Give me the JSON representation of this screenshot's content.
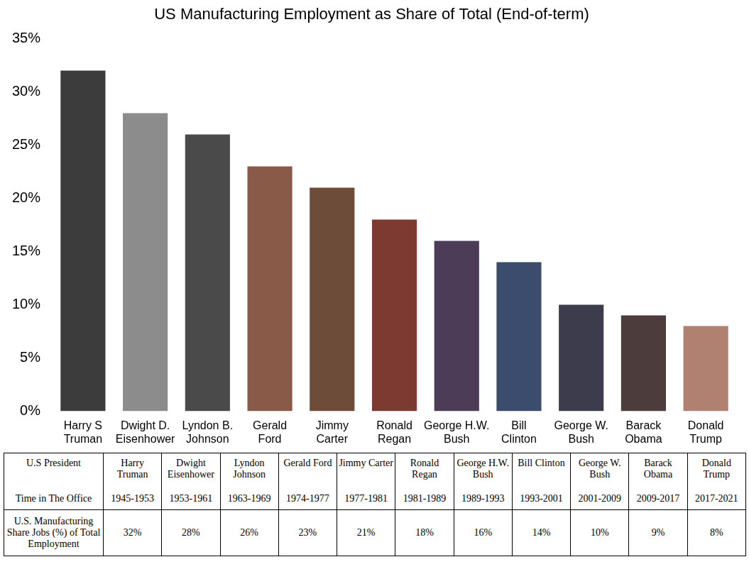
{
  "chart_data": {
    "type": "bar",
    "title": "US Manufacturing Employment as Share of Total (End-of-term)",
    "categories": [
      "Harry S Truman",
      "Dwight D. Eisenhower",
      "Lyndon B. Johnson",
      "Gerald Ford",
      "Jimmy Carter",
      "Ronald Regan",
      "George H.W. Bush",
      "Bill Clinton",
      "George W. Bush",
      "Barack Obama",
      "Donald Trump"
    ],
    "values": [
      32,
      28,
      26,
      23,
      21,
      18,
      16,
      14,
      10,
      9,
      8
    ],
    "colors": [
      "#3c3c3c",
      "#8c8c8c",
      "#4a4a4a",
      "#8a5a48",
      "#6e4c3a",
      "#7c3a30",
      "#4c3c58",
      "#3c4c6c",
      "#3c3c4c",
      "#4c3c3c",
      "#b08070"
    ],
    "ylim": [
      0,
      35
    ],
    "yticks": [
      {
        "value": 0,
        "label": "0%"
      },
      {
        "value": 5,
        "label": "5%"
      },
      {
        "value": 10,
        "label": "10%"
      },
      {
        "value": 15,
        "label": "15%"
      },
      {
        "value": 20,
        "label": "20%"
      },
      {
        "value": 25,
        "label": "25%"
      },
      {
        "value": 30,
        "label": "30%"
      },
      {
        "value": 35,
        "label": "35%"
      }
    ],
    "grid": false,
    "data_labels": false
  },
  "table": {
    "header": [
      "U.S President",
      "Harry Truman",
      "Dwight Eisenhower",
      "Lyndon Johnson",
      "Gerald Ford",
      "Jimmy Carter",
      "Ronald Regan",
      "George H.W. Bush",
      "Bill Clinton",
      "George W. Bush",
      "Barack Obama",
      "Donald Trump"
    ],
    "rows": [
      [
        "Time in The Office",
        "1945-1953",
        "1953-1961",
        "1963-1969",
        "1974-1977",
        "1977-1981",
        "1981-1989",
        "1989-1993",
        "1993-2001",
        "2001-2009",
        "2009-2017",
        "2017-2021"
      ],
      [
        "U.S. Manufacturing Share Jobs (%) of Total Employment",
        "32%",
        "28%",
        "26%",
        "23%",
        "21%",
        "18%",
        "16%",
        "14%",
        "10%",
        "9%",
        "8%"
      ]
    ]
  }
}
